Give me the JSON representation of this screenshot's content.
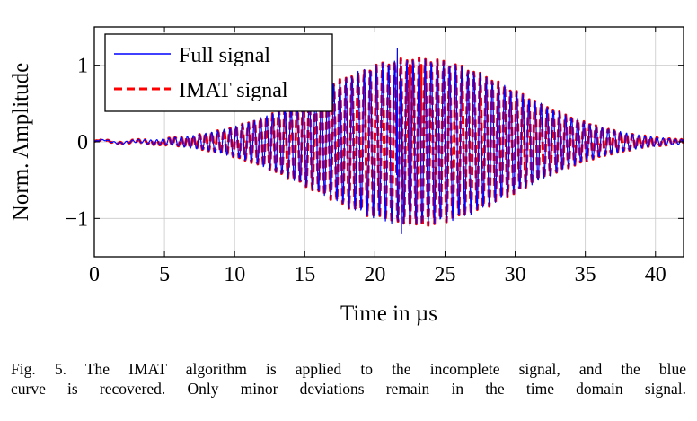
{
  "chart_data": {
    "type": "line",
    "title": "",
    "xlabel": "Time in µs",
    "ylabel": "Norm. Amplitude",
    "xlim": [
      0,
      42
    ],
    "ylim": [
      -1.5,
      1.5
    ],
    "grid": true,
    "legend_placement": "top-left",
    "x_ticks": [
      0,
      5,
      10,
      15,
      20,
      25,
      30,
      35,
      40
    ],
    "x_tick_labels": [
      "0",
      "5",
      "10",
      "15",
      "20",
      "25",
      "30",
      "35",
      "40"
    ],
    "y_ticks": [
      1,
      0,
      -1
    ],
    "y_tick_labels": [
      "1",
      "0",
      "−1"
    ],
    "signal_model": {
      "carrier_frequency_mhz": 2.3,
      "envelope_center_us": 23,
      "envelope_width_us": 10,
      "envelope_peak": 1.1,
      "x_step_us": 0.05
    },
    "anomalies": [
      {
        "x": 21.6,
        "y": 1.22,
        "series": "Full signal"
      },
      {
        "x": 21.9,
        "y": -1.2,
        "series": "Full signal"
      },
      {
        "x": 22.5,
        "y": 1.0,
        "series": "IMAT signal"
      },
      {
        "x": 23.3,
        "y": 1.0,
        "series": "IMAT signal"
      },
      {
        "x": 23.4,
        "y": -1.1,
        "series": "IMAT signal"
      }
    ],
    "series": [
      {
        "name": "Full signal",
        "color": "#0000ff",
        "style": "solid"
      },
      {
        "name": "IMAT signal",
        "color": "#ff0000",
        "style": "dashed"
      }
    ]
  },
  "caption": {
    "line1": "Fig. 5.  The IMAT algorithm is applied to the incomplete signal, and the blue",
    "line2": "curve is recovered. Only minor deviations remain in the time domain signal."
  }
}
